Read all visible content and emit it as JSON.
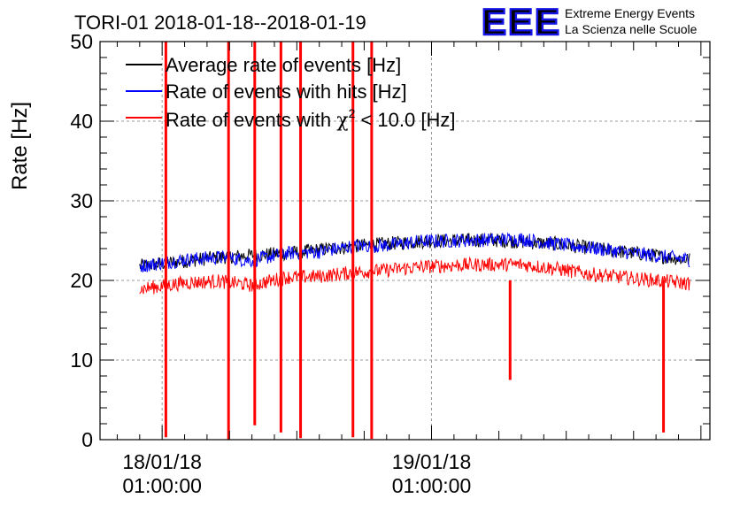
{
  "header": {
    "title": "TORI-01 2018-01-18--2018-01-19",
    "logo_text": "EEE",
    "logo_line1": "Extreme Energy Events",
    "logo_line2": "La Scienza nelle Scuole",
    "logo_color": "#1414e6"
  },
  "chart_data": {
    "type": "line",
    "title": "TORI-01 2018-01-18--2018-01-19",
    "xlabel": "",
    "ylabel": "Rate [Hz]",
    "ylim": [
      0,
      50
    ],
    "xlim": [
      "2018-01-17T19:28:00",
      "2018-01-20T01:48:00"
    ],
    "data_range": [
      "2018-01-17T23:00:00",
      "2018-01-20T00:00:00"
    ],
    "yticks": [
      0,
      10,
      20,
      30,
      40,
      50
    ],
    "xticks": [
      {
        "x": "2018-01-18T01:00:00",
        "line1": "18/01/18",
        "line2": "01:00:00"
      },
      {
        "x": "2018-01-19T01:00:00",
        "line1": "19/01/18",
        "line2": "01:00:00"
      }
    ],
    "grid": true,
    "legend_position": "top-left",
    "series": [
      {
        "name": "Average rate of events [Hz]",
        "color": "#000000",
        "description_values": "overlaps hits series, hidden behind blue",
        "values": [
          {
            "x": "2018-01-17T23:00:00",
            "y": 21.8
          },
          {
            "x": "2018-01-18T06:00:00",
            "y": 22.9
          },
          {
            "x": "2018-01-18T12:00:00",
            "y": 23.4
          },
          {
            "x": "2018-01-18T18:00:00",
            "y": 24.3
          },
          {
            "x": "2018-01-19T00:00:00",
            "y": 24.9
          },
          {
            "x": "2018-01-19T06:00:00",
            "y": 25.1
          },
          {
            "x": "2018-01-19T12:00:00",
            "y": 24.6
          },
          {
            "x": "2018-01-19T18:00:00",
            "y": 23.6
          },
          {
            "x": "2018-01-20T00:00:00",
            "y": 22.6
          }
        ]
      },
      {
        "name": "Rate of events with hits [Hz]",
        "color": "#0000ff",
        "values": [
          {
            "x": "2018-01-17T23:00:00",
            "y": 21.8
          },
          {
            "x": "2018-01-18T03:00:00",
            "y": 22.6
          },
          {
            "x": "2018-01-18T06:00:00",
            "y": 22.9
          },
          {
            "x": "2018-01-18T09:00:00",
            "y": 22.5
          },
          {
            "x": "2018-01-18T12:00:00",
            "y": 23.4
          },
          {
            "x": "2018-01-18T15:00:00",
            "y": 23.6
          },
          {
            "x": "2018-01-18T18:00:00",
            "y": 24.3
          },
          {
            "x": "2018-01-18T21:00:00",
            "y": 24.4
          },
          {
            "x": "2018-01-19T00:00:00",
            "y": 24.9
          },
          {
            "x": "2018-01-19T03:00:00",
            "y": 25.0
          },
          {
            "x": "2018-01-19T06:00:00",
            "y": 25.1
          },
          {
            "x": "2018-01-19T09:00:00",
            "y": 25.2
          },
          {
            "x": "2018-01-19T12:00:00",
            "y": 24.6
          },
          {
            "x": "2018-01-19T15:00:00",
            "y": 24.1
          },
          {
            "x": "2018-01-19T18:00:00",
            "y": 23.6
          },
          {
            "x": "2018-01-19T21:00:00",
            "y": 23.1
          },
          {
            "x": "2018-01-20T00:00:00",
            "y": 22.6
          }
        ]
      },
      {
        "name": "Rate of events with χ² < 10.0 [Hz]",
        "color": "#ff0000",
        "values": [
          {
            "x": "2018-01-17T23:00:00",
            "y": 18.9
          },
          {
            "x": "2018-01-18T03:00:00",
            "y": 19.7
          },
          {
            "x": "2018-01-18T06:00:00",
            "y": 19.9
          },
          {
            "x": "2018-01-18T09:00:00",
            "y": 19.4
          },
          {
            "x": "2018-01-18T12:00:00",
            "y": 20.4
          },
          {
            "x": "2018-01-18T15:00:00",
            "y": 20.5
          },
          {
            "x": "2018-01-18T18:00:00",
            "y": 21.0
          },
          {
            "x": "2018-01-18T21:00:00",
            "y": 21.3
          },
          {
            "x": "2018-01-19T00:00:00",
            "y": 21.7
          },
          {
            "x": "2018-01-19T03:00:00",
            "y": 21.9
          },
          {
            "x": "2018-01-19T06:00:00",
            "y": 22.0
          },
          {
            "x": "2018-01-19T09:00:00",
            "y": 22.0
          },
          {
            "x": "2018-01-19T12:00:00",
            "y": 21.5
          },
          {
            "x": "2018-01-19T15:00:00",
            "y": 20.8
          },
          {
            "x": "2018-01-19T18:00:00",
            "y": 20.4
          },
          {
            "x": "2018-01-19T21:00:00",
            "y": 20.0
          },
          {
            "x": "2018-01-20T00:00:00",
            "y": 19.6
          }
        ],
        "spikes": [
          {
            "x": "2018-01-18T01:20:00",
            "y_low": 0.3,
            "y_high": 50
          },
          {
            "x": "2018-01-18T06:55:00",
            "y_low": 0,
            "y_high": 50
          },
          {
            "x": "2018-01-18T09:15:00",
            "y_low": 1.8,
            "y_high": 50
          },
          {
            "x": "2018-01-18T11:35:00",
            "y_low": 0.9,
            "y_high": 50
          },
          {
            "x": "2018-01-18T13:20:00",
            "y_low": 0.2,
            "y_high": 50
          },
          {
            "x": "2018-01-18T18:00:00",
            "y_low": 0.3,
            "y_high": 50
          },
          {
            "x": "2018-01-18T19:40:00",
            "y_low": 0.1,
            "y_high": 50
          },
          {
            "x": "2018-01-19T08:00:00",
            "y_low": 7.5,
            "y_high": 20
          },
          {
            "x": "2018-01-19T21:40:00",
            "y_low": 0.9,
            "y_high": 20
          }
        ]
      }
    ]
  },
  "legend": {
    "items": [
      {
        "text": "Average rate of events [Hz]",
        "color": "#000000"
      },
      {
        "text": "Rate of events with hits [Hz]",
        "color": "#0000ff"
      },
      {
        "text_pre": "Rate of events with ",
        "chi": "χ",
        "sup": "2",
        "text_post": " < 10.0 [Hz]",
        "color": "#ff0000"
      }
    ]
  }
}
